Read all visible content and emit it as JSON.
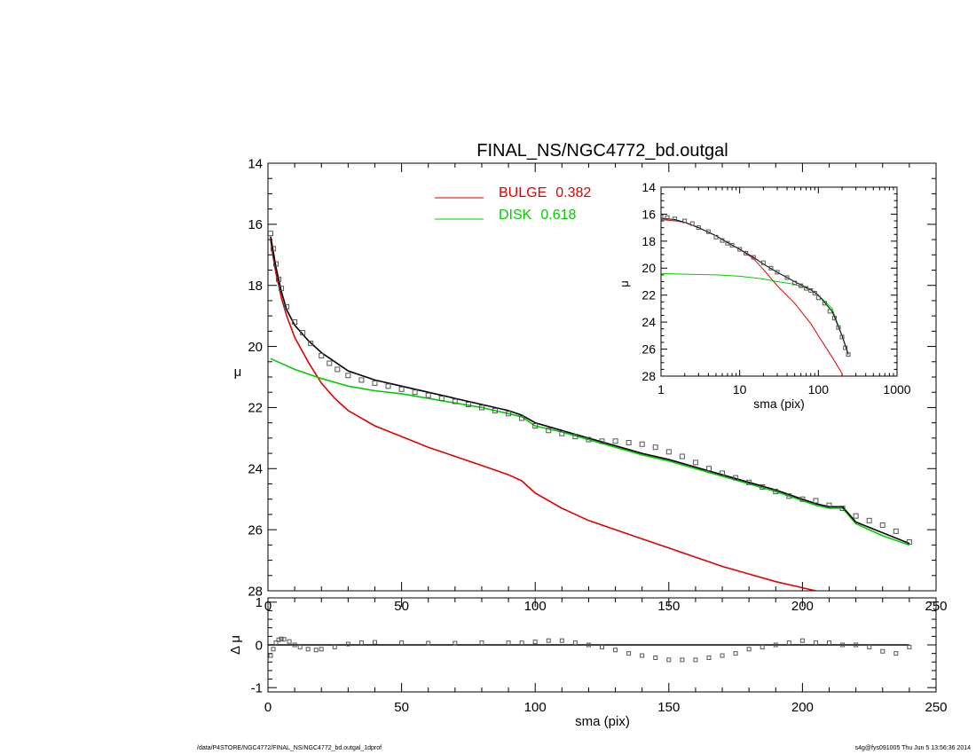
{
  "footer": {
    "path": "/data/P4STORE/NGC4772/FINAL_NS/NGC4772_bd.outgal_1dprof",
    "stamp": "s4g@fys091005  Thu Jun  5 13:56:36 2014"
  },
  "chart_data": [
    {
      "type": "line",
      "title": "FINAL_NS/NGC4772_bd.outgal",
      "xlabel": "",
      "ylabel": "μ",
      "xlim": [
        0,
        250
      ],
      "ylim": [
        28,
        14
      ],
      "x_ticks": [
        0,
        50,
        100,
        150,
        200,
        250
      ],
      "y_ticks": [
        14,
        16,
        18,
        20,
        22,
        24,
        26,
        28
      ],
      "legend_position": "top-center",
      "series": [
        {
          "name": "BULGE",
          "value_label": "0.382",
          "color": "#e00000",
          "x": [
            1,
            2,
            3,
            5,
            7,
            10,
            15,
            20,
            25,
            30,
            40,
            50,
            60,
            70,
            80,
            90,
            95,
            100,
            110,
            120,
            130,
            140,
            150,
            160,
            170,
            180,
            190,
            200,
            205
          ],
          "y": [
            16.5,
            17.1,
            17.6,
            18.4,
            19.0,
            19.7,
            20.5,
            21.2,
            21.7,
            22.1,
            22.6,
            22.95,
            23.3,
            23.6,
            23.9,
            24.2,
            24.4,
            24.8,
            25.3,
            25.7,
            26.0,
            26.3,
            26.6,
            26.9,
            27.2,
            27.45,
            27.7,
            27.9,
            28.0
          ]
        },
        {
          "name": "DISK",
          "value_label": "0.618",
          "color": "#00cc00",
          "x": [
            1,
            10,
            20,
            30,
            40,
            50,
            60,
            70,
            80,
            90,
            95,
            100,
            110,
            120,
            130,
            140,
            150,
            160,
            170,
            180,
            190,
            200,
            205,
            210,
            215,
            220,
            230,
            240
          ],
          "y": [
            20.4,
            20.75,
            21.05,
            21.3,
            21.45,
            21.55,
            21.7,
            21.85,
            22.0,
            22.2,
            22.3,
            22.6,
            22.8,
            23.05,
            23.3,
            23.55,
            23.75,
            24.0,
            24.25,
            24.5,
            24.75,
            25.05,
            25.2,
            25.3,
            25.3,
            25.8,
            26.2,
            26.5
          ]
        },
        {
          "name": "model",
          "color": "#000000",
          "x": [
            1,
            2,
            3,
            5,
            7,
            10,
            15,
            20,
            25,
            30,
            40,
            50,
            60,
            70,
            80,
            90,
            95,
            100,
            110,
            120,
            130,
            140,
            150,
            160,
            170,
            180,
            190,
            200,
            205,
            210,
            215,
            220,
            230,
            240
          ],
          "y": [
            16.4,
            16.9,
            17.4,
            18.2,
            18.8,
            19.3,
            19.8,
            20.2,
            20.5,
            20.8,
            21.1,
            21.3,
            21.5,
            21.7,
            21.9,
            22.1,
            22.25,
            22.5,
            22.75,
            23.0,
            23.25,
            23.5,
            23.7,
            23.95,
            24.2,
            24.45,
            24.7,
            25.0,
            25.15,
            25.25,
            25.25,
            25.75,
            26.1,
            26.45
          ]
        },
        {
          "name": "data",
          "type": "scatter",
          "color": "#555555",
          "x": [
            1,
            2,
            3,
            4,
            5,
            7,
            10,
            13,
            16,
            20,
            23,
            26,
            30,
            35,
            40,
            45,
            50,
            55,
            60,
            65,
            70,
            75,
            80,
            85,
            90,
            95,
            100,
            105,
            110,
            115,
            120,
            125,
            130,
            135,
            140,
            145,
            150,
            155,
            160,
            165,
            170,
            175,
            180,
            185,
            190,
            195,
            200,
            205,
            210,
            215,
            220,
            225,
            230,
            235,
            240
          ],
          "y": [
            16.3,
            16.8,
            17.3,
            17.8,
            18.1,
            18.7,
            19.2,
            19.55,
            19.9,
            20.3,
            20.55,
            20.75,
            20.95,
            21.1,
            21.2,
            21.3,
            21.4,
            21.5,
            21.6,
            21.7,
            21.8,
            21.9,
            22.0,
            22.1,
            22.2,
            22.35,
            22.6,
            22.75,
            22.85,
            22.95,
            23.05,
            23.1,
            23.1,
            23.15,
            23.2,
            23.3,
            23.45,
            23.6,
            23.8,
            24.0,
            24.15,
            24.3,
            24.45,
            24.6,
            24.75,
            24.9,
            25.0,
            25.05,
            25.2,
            25.3,
            25.55,
            25.7,
            25.85,
            26.05,
            26.4
          ]
        }
      ]
    },
    {
      "type": "line",
      "title": "",
      "xlabel": "sma (pix)",
      "ylabel": "Δ μ",
      "xlim": [
        0,
        250
      ],
      "ylim": [
        -1.1,
        1.1
      ],
      "x_ticks": [
        0,
        50,
        100,
        150,
        200,
        250
      ],
      "y_ticks": [
        -1,
        0,
        1
      ],
      "series": [
        {
          "name": "zero",
          "color": "#000000",
          "x": [
            0,
            240
          ],
          "y": [
            0,
            0
          ]
        },
        {
          "name": "residual",
          "type": "scatter",
          "color": "#555555",
          "x": [
            1,
            2,
            3,
            4,
            5,
            6,
            8,
            10,
            12,
            15,
            18,
            20,
            25,
            30,
            35,
            40,
            50,
            60,
            70,
            80,
            90,
            95,
            100,
            105,
            110,
            115,
            120,
            125,
            130,
            135,
            140,
            145,
            150,
            155,
            160,
            165,
            170,
            175,
            180,
            185,
            190,
            195,
            200,
            205,
            210,
            215,
            220,
            225,
            230,
            235,
            240
          ],
          "y": [
            -0.25,
            -0.1,
            0.05,
            0.12,
            0.14,
            0.13,
            0.08,
            0.0,
            -0.05,
            -0.1,
            -0.12,
            -0.1,
            -0.05,
            0.02,
            0.05,
            0.06,
            0.05,
            0.04,
            0.04,
            0.05,
            0.05,
            0.05,
            0.07,
            0.1,
            0.1,
            0.05,
            0.0,
            -0.05,
            -0.12,
            -0.2,
            -0.25,
            -0.3,
            -0.35,
            -0.35,
            -0.35,
            -0.3,
            -0.25,
            -0.2,
            -0.1,
            -0.05,
            0.0,
            0.05,
            0.1,
            0.05,
            0.05,
            0.0,
            0.0,
            -0.05,
            -0.15,
            -0.2,
            -0.05
          ]
        }
      ]
    },
    {
      "type": "line",
      "title": "",
      "xlabel": "sma (pix)",
      "ylabel": "μ",
      "x_scale": "log",
      "xlim": [
        1,
        1000
      ],
      "ylim": [
        28,
        14
      ],
      "x_ticks": [
        1,
        10,
        100,
        1000
      ],
      "y_ticks": [
        14,
        16,
        18,
        20,
        22,
        24,
        26,
        28
      ],
      "series": [
        {
          "name": "bulge",
          "color": "#e00000",
          "x": [
            1,
            1.5,
            2,
            3,
            5,
            7,
            10,
            15,
            20,
            30,
            50,
            80,
            100,
            150,
            200
          ],
          "y": [
            16.4,
            16.5,
            16.6,
            17.0,
            17.6,
            18.1,
            18.6,
            19.3,
            20.1,
            21.3,
            22.6,
            24.1,
            25.0,
            26.6,
            27.8
          ]
        },
        {
          "name": "disk",
          "color": "#00cc00",
          "x": [
            1,
            2,
            5,
            10,
            20,
            30,
            50,
            80,
            100,
            150,
            200,
            240
          ],
          "y": [
            20.4,
            20.45,
            20.5,
            20.6,
            20.8,
            21.0,
            21.2,
            21.6,
            22.0,
            23.0,
            25.0,
            26.3
          ]
        },
        {
          "name": "model",
          "color": "#000000",
          "x": [
            1,
            1.5,
            2,
            3,
            5,
            7,
            10,
            15,
            20,
            30,
            50,
            80,
            100,
            150,
            200,
            240
          ],
          "y": [
            16.3,
            16.4,
            16.6,
            17.0,
            17.6,
            18.1,
            18.6,
            19.2,
            19.7,
            20.3,
            21.0,
            21.6,
            22.0,
            23.2,
            25.0,
            26.4
          ]
        },
        {
          "name": "data",
          "type": "scatter",
          "color": "#555555",
          "x": [
            1,
            1.2,
            1.5,
            2,
            2.5,
            3,
            4,
            5,
            6,
            7,
            8,
            10,
            12,
            15,
            20,
            25,
            30,
            40,
            50,
            60,
            70,
            80,
            90,
            100,
            120,
            140,
            160,
            180,
            200,
            220,
            240
          ],
          "y": [
            16.2,
            16.25,
            16.35,
            16.5,
            16.7,
            17.0,
            17.3,
            17.7,
            17.95,
            18.15,
            18.3,
            18.6,
            18.9,
            19.2,
            19.6,
            20.0,
            20.3,
            20.7,
            21.1,
            21.3,
            21.5,
            21.65,
            21.85,
            22.2,
            22.6,
            23.2,
            23.7,
            24.4,
            25.1,
            25.9,
            26.4
          ]
        }
      ]
    }
  ]
}
